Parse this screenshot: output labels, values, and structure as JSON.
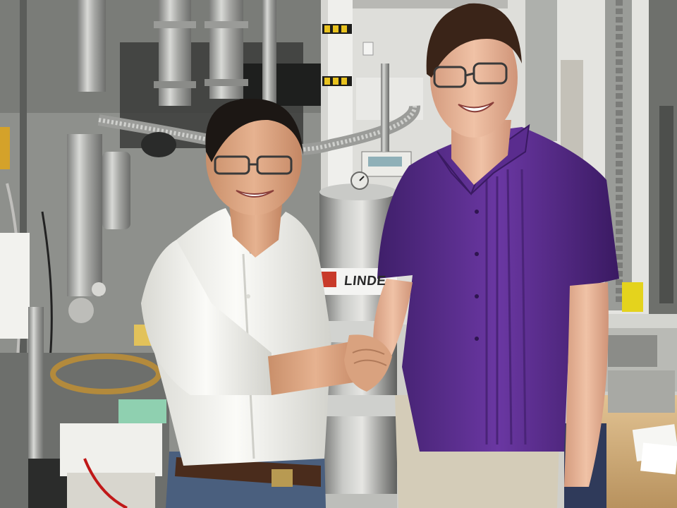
{
  "photo": {
    "dewar_label": "LINDE"
  },
  "colors": {
    "wall": "#d9d9d4",
    "purple_shirt": "#5b2d8c",
    "white_shirt": "#f2f2ee",
    "steel": "#a9aaa8",
    "jeans": "#4a5f7e",
    "khaki": "#d4ccb8",
    "bench": "#d9b98a"
  },
  "icons": [
    "hazard-stripe-icon",
    "pressure-gauge-icon"
  ]
}
